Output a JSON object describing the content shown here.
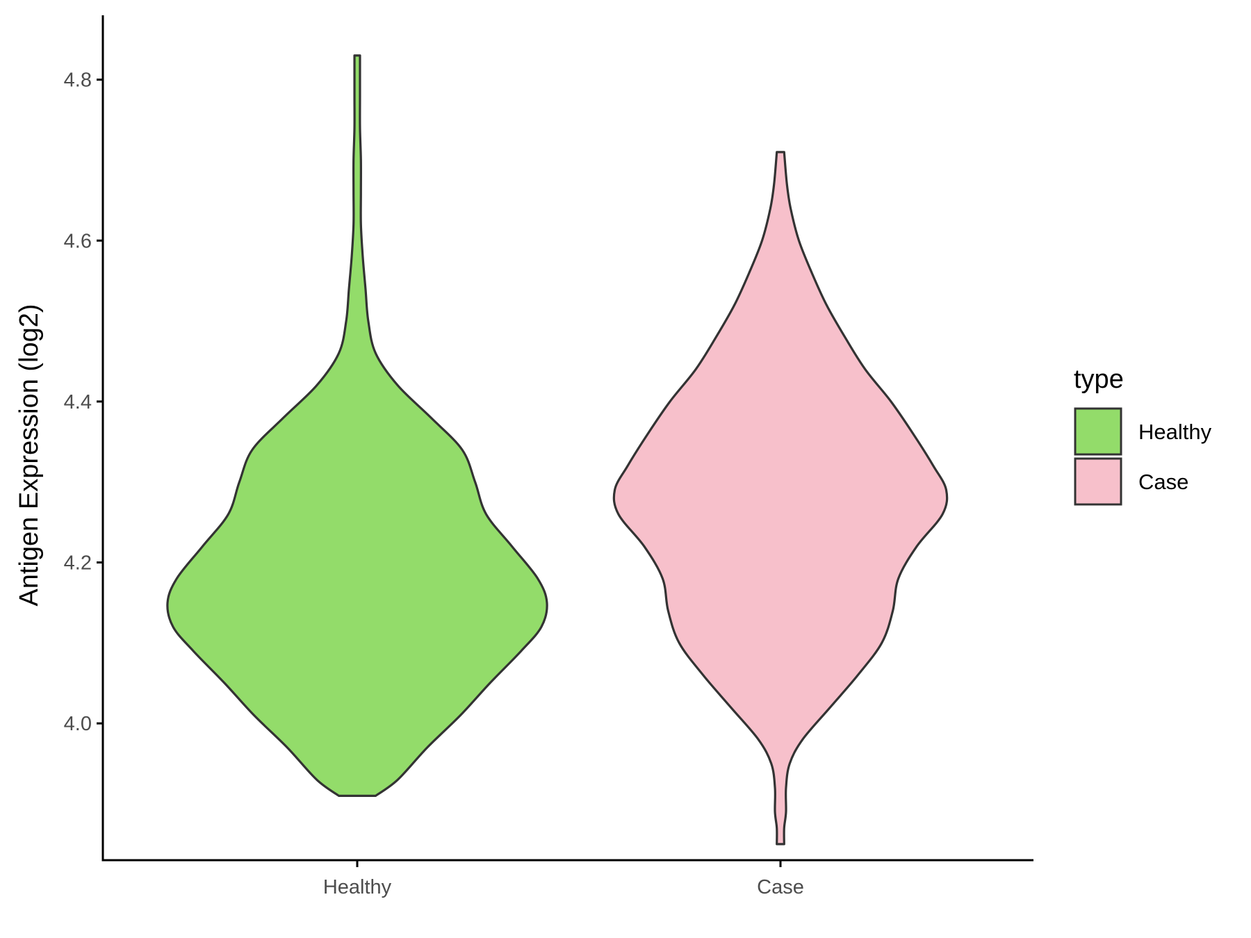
{
  "chart_data": {
    "type": "violin",
    "title": "",
    "xlabel": "",
    "ylabel": "Antigen Expression (log2)",
    "ylim": [
      3.83,
      4.88
    ],
    "y_ticks": [
      "4.0",
      "4.2",
      "4.4",
      "4.6",
      "4.8"
    ],
    "categories": [
      "Healthy",
      "Case"
    ],
    "grid": false,
    "legend": {
      "title": "type",
      "placement": "right",
      "entries": [
        {
          "label": "Healthy",
          "color": "#93dc6a"
        },
        {
          "label": "Case",
          "color": "#f7c0cb"
        }
      ]
    },
    "series": [
      {
        "category": "Healthy",
        "color": "#93dc6a",
        "min": 3.91,
        "max": 4.83,
        "density_half_width": [
          [
            3.91,
            0.1
          ],
          [
            3.93,
            0.22
          ],
          [
            3.97,
            0.38
          ],
          [
            4.01,
            0.56
          ],
          [
            4.05,
            0.72
          ],
          [
            4.09,
            0.89
          ],
          [
            4.12,
            1.0
          ],
          [
            4.15,
            1.03
          ],
          [
            4.18,
            0.98
          ],
          [
            4.22,
            0.84
          ],
          [
            4.26,
            0.7
          ],
          [
            4.3,
            0.64
          ],
          [
            4.34,
            0.57
          ],
          [
            4.38,
            0.4
          ],
          [
            4.42,
            0.22
          ],
          [
            4.46,
            0.1
          ],
          [
            4.5,
            0.06
          ],
          [
            4.54,
            0.045
          ],
          [
            4.58,
            0.03
          ],
          [
            4.62,
            0.02
          ],
          [
            4.66,
            0.02
          ],
          [
            4.7,
            0.02
          ],
          [
            4.74,
            0.015
          ],
          [
            4.78,
            0.015
          ],
          [
            4.83,
            0.015
          ]
        ]
      },
      {
        "category": "Case",
        "color": "#f7c0cb",
        "min": 3.85,
        "max": 4.71,
        "density_half_width": [
          [
            3.85,
            0.02
          ],
          [
            3.87,
            0.02
          ],
          [
            3.89,
            0.03
          ],
          [
            3.92,
            0.03
          ],
          [
            3.95,
            0.05
          ],
          [
            3.98,
            0.12
          ],
          [
            4.02,
            0.27
          ],
          [
            4.06,
            0.42
          ],
          [
            4.1,
            0.55
          ],
          [
            4.14,
            0.61
          ],
          [
            4.18,
            0.64
          ],
          [
            4.22,
            0.74
          ],
          [
            4.26,
            0.88
          ],
          [
            4.29,
            0.9
          ],
          [
            4.32,
            0.83
          ],
          [
            4.36,
            0.72
          ],
          [
            4.4,
            0.6
          ],
          [
            4.44,
            0.46
          ],
          [
            4.48,
            0.35
          ],
          [
            4.52,
            0.25
          ],
          [
            4.56,
            0.17
          ],
          [
            4.6,
            0.1
          ],
          [
            4.64,
            0.055
          ],
          [
            4.67,
            0.035
          ],
          [
            4.71,
            0.02
          ]
        ]
      }
    ]
  }
}
